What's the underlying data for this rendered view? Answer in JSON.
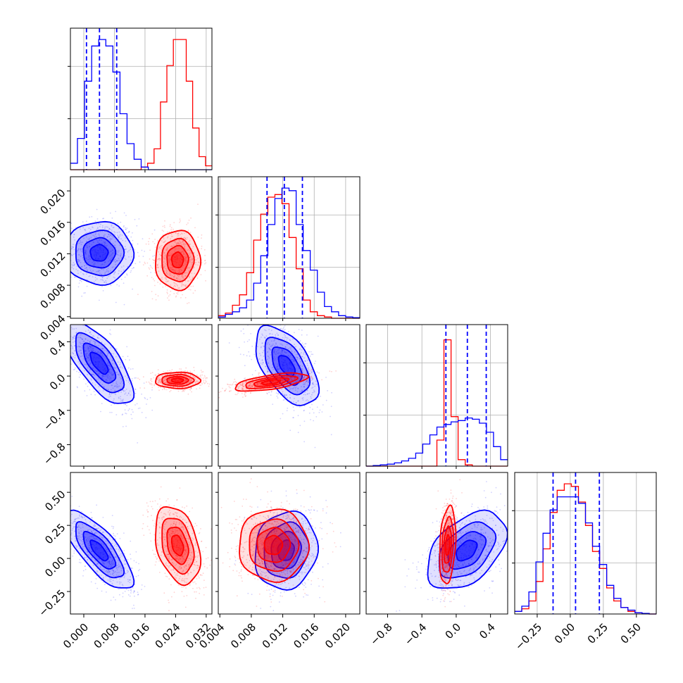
{
  "chart_data": {
    "type": "corner",
    "grid": true,
    "series_colors": {
      "blue": "#0000ff",
      "red": "#ff0000"
    },
    "parameters": [
      {
        "range": [
          -0.0035,
          0.0335
        ],
        "ticks": [
          "0.000",
          "0.008",
          "0.016",
          "0.024",
          "0.032"
        ],
        "tick_values": [
          0.0,
          0.008,
          0.016,
          0.024,
          0.032
        ]
      },
      {
        "range": [
          0.0038,
          0.0218
        ],
        "ticks": [
          "0.004",
          "0.008",
          "0.012",
          "0.016",
          "0.020"
        ],
        "tick_values": [
          0.004,
          0.008,
          0.012,
          0.016,
          0.02
        ]
      },
      {
        "range": [
          -1.05,
          0.6
        ],
        "ticks": [
          "−0.8",
          "−0.4",
          "0.0",
          "0.4"
        ],
        "tick_values": [
          -0.8,
          -0.4,
          0.0,
          0.4
        ]
      },
      {
        "range": [
          -0.42,
          0.65
        ],
        "ticks": [
          "−0.25",
          "0.00",
          "0.25",
          "0.50"
        ],
        "tick_values": [
          -0.25,
          0.0,
          0.25,
          0.5
        ]
      }
    ],
    "y_tick_labels": {
      "1": {
        "ticks": [
          "0.004",
          "0.008",
          "0.012",
          "0.016",
          "0.020"
        ],
        "tick_values": [
          0.004,
          0.008,
          0.012,
          0.016,
          0.02
        ]
      },
      "2": {
        "ticks": [
          "−0.8",
          "−0.4",
          "0.0",
          "0.4"
        ],
        "tick_values": [
          -0.8,
          -0.4,
          0.0,
          0.4
        ]
      },
      "3": {
        "ticks": [
          "−0.25",
          "0.00",
          "0.25",
          "0.50"
        ],
        "tick_values": [
          -0.25,
          0.0,
          0.25,
          0.5
        ]
      }
    },
    "marginals": [
      {
        "param": 0,
        "bins": [
          -0.0035,
          0.0335
        ],
        "blue": [
          0.05,
          0.24,
          0.68,
          0.95,
          1.0,
          0.95,
          0.75,
          0.43,
          0.2,
          0.08,
          0.02,
          0,
          0,
          0,
          0,
          0,
          0,
          0,
          0,
          0
        ],
        "red": [
          0,
          0,
          0,
          0,
          0,
          0,
          0,
          0,
          0,
          0,
          0,
          0.02,
          0.05,
          0.16,
          0.52,
          0.8,
          1.0,
          1.0,
          0.68,
          0.32,
          0.1,
          0.03
        ],
        "blue_quantiles": [
          0.0007,
          0.0041,
          0.0086
        ],
        "blue_peak_frac": 0.72
      },
      {
        "param": 1,
        "bins": [
          0.0038,
          0.0218
        ],
        "blue": [
          0.01,
          0.03,
          0.05,
          0.08,
          0.14,
          0.27,
          0.48,
          0.72,
          0.92,
          1.0,
          0.98,
          0.72,
          0.52,
          0.37,
          0.2,
          0.09,
          0.05,
          0.02,
          0.01,
          0.005
        ],
        "red": [
          0.02,
          0.04,
          0.1,
          0.18,
          0.35,
          0.6,
          0.8,
          0.93,
          0.95,
          0.88,
          0.62,
          0.38,
          0.14,
          0.05,
          0.02,
          0.01,
          0,
          0,
          0,
          0
        ],
        "blue_quantiles": [
          0.01,
          0.0122,
          0.0145
        ],
        "blue_peak_frac": 0.99
      },
      {
        "param": 2,
        "bins": [
          -1.05,
          0.6
        ],
        "blue": [
          0.0,
          0.005,
          0.01,
          0.015,
          0.025,
          0.04,
          0.06,
          0.1,
          0.17,
          0.24,
          0.3,
          0.32,
          0.34,
          0.35,
          0.37,
          0.36,
          0.33,
          0.26,
          0.15,
          0.05
        ],
        "red": [
          0,
          0,
          0,
          0,
          0,
          0,
          0,
          0,
          0,
          0,
          0.2,
          0.97,
          0.38,
          0.05,
          0.01,
          0,
          0,
          0,
          0,
          0
        ],
        "blue_quantiles": [
          -0.12,
          0.13,
          0.35
        ],
        "blue_peak_frac": 0.29
      },
      {
        "param": 3,
        "bins": [
          -0.42,
          0.65
        ],
        "blue": [
          0.02,
          0.06,
          0.17,
          0.4,
          0.62,
          0.8,
          0.9,
          0.9,
          0.9,
          0.85,
          0.7,
          0.52,
          0.38,
          0.22,
          0.12,
          0.05,
          0.03,
          0.01,
          0.005,
          0
        ],
        "red": [
          0.02,
          0.04,
          0.1,
          0.25,
          0.5,
          0.78,
          0.95,
          1.0,
          0.98,
          0.86,
          0.68,
          0.48,
          0.35,
          0.2,
          0.1,
          0.05,
          0.02,
          0.01,
          0.005,
          0
        ],
        "blue_quantiles": [
          -0.13,
          0.04,
          0.22
        ],
        "blue_peak_frac": 0.88
      }
    ],
    "pairs": [
      {
        "row": 1,
        "col": 0,
        "blue": {
          "mean": [
            0.004,
            0.0121
          ],
          "sd": [
            0.0042,
            0.0019
          ],
          "rho": 0.0
        },
        "red": {
          "mean": [
            0.0245,
            0.0112
          ],
          "sd": [
            0.0028,
            0.0018
          ],
          "rho": 0.0
        }
      },
      {
        "row": 2,
        "col": 0,
        "blue": {
          "mean": [
            0.004,
            0.15
          ],
          "sd": [
            0.0042,
            0.23
          ],
          "rho": -0.7
        },
        "red": {
          "mean": [
            0.0245,
            -0.05
          ],
          "sd": [
            0.0028,
            0.045
          ],
          "rho": 0.0
        }
      },
      {
        "row": 2,
        "col": 1,
        "blue": {
          "mean": [
            0.0125,
            0.12
          ],
          "sd": [
            0.0019,
            0.22
          ],
          "rho": -0.55
        },
        "red": {
          "mean": [
            0.0105,
            -0.07
          ],
          "sd": [
            0.0022,
            0.05
          ],
          "rho": 0.6
        }
      },
      {
        "row": 3,
        "col": 0,
        "blue": {
          "mean": [
            0.004,
            0.06
          ],
          "sd": [
            0.0042,
            0.14
          ],
          "rho": -0.75
        },
        "red": {
          "mean": [
            0.0245,
            0.1
          ],
          "sd": [
            0.0028,
            0.14
          ],
          "rho": -0.35
        }
      },
      {
        "row": 3,
        "col": 1,
        "blue": {
          "mean": [
            0.0124,
            0.06
          ],
          "sd": [
            0.0019,
            0.14
          ],
          "rho": 0.1
        },
        "red": {
          "mean": [
            0.0108,
            0.1
          ],
          "sd": [
            0.0021,
            0.13
          ],
          "rho": 0.0
        }
      },
      {
        "row": 3,
        "col": 2,
        "blue": {
          "mean": [
            0.12,
            0.06
          ],
          "sd": [
            0.22,
            0.14
          ],
          "rho": 0.45
        },
        "red": {
          "mean": [
            -0.1,
            0.1
          ],
          "sd": [
            0.045,
            0.14
          ],
          "rho": 0.25
        }
      }
    ]
  }
}
